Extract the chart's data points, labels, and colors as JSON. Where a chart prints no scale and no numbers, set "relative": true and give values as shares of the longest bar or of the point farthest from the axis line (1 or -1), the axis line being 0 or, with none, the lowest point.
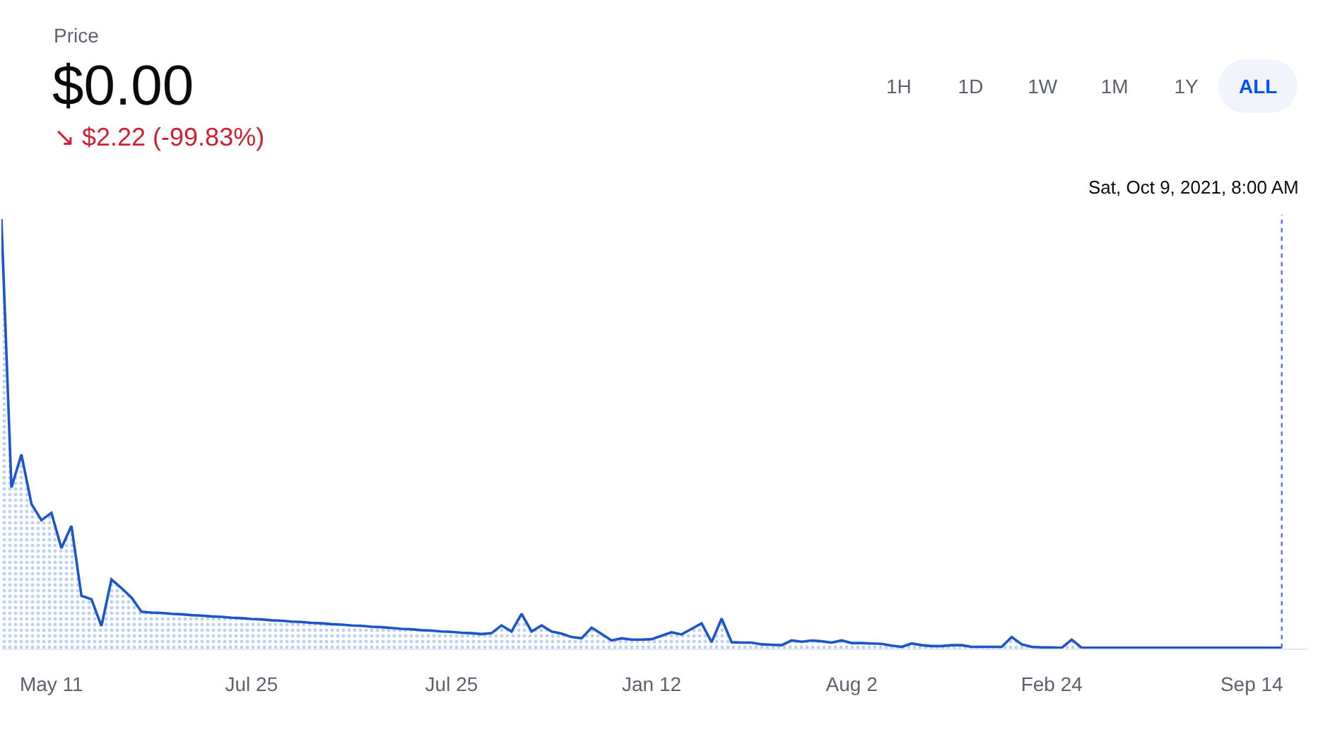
{
  "chart_data": {
    "type": "area",
    "title": "Price",
    "subtitle": "$0.00",
    "annotations": [
      "↘ $2.22 (-99.83%)",
      "1H",
      "1D",
      "1W",
      "1M",
      "1Y",
      "ALL",
      "Sat, Oct 9, 2021, 8:00 AM"
    ],
    "relative": true,
    "grid": false,
    "marker": "none",
    "line_style": "solid",
    "categories": [
      null,
      null,
      null,
      null,
      null,
      "May 11",
      null,
      null,
      null,
      null,
      null,
      null,
      null,
      null,
      null,
      null,
      null,
      null,
      null,
      null,
      null,
      null,
      null,
      null,
      null,
      "Jul 25",
      null,
      null,
      null,
      null,
      null,
      null,
      null,
      null,
      null,
      null,
      null,
      null,
      null,
      null,
      null,
      null,
      null,
      null,
      null,
      "Jul 25",
      null,
      null,
      null,
      null,
      null,
      null,
      null,
      null,
      null,
      null,
      null,
      null,
      null,
      null,
      null,
      null,
      null,
      null,
      null,
      "Jan 12",
      null,
      null,
      null,
      null,
      null,
      null,
      null,
      null,
      null,
      null,
      null,
      null,
      null,
      null,
      null,
      null,
      null,
      null,
      null,
      "Aug 2",
      null,
      null,
      null,
      null,
      null,
      null,
      null,
      null,
      null,
      null,
      null,
      null,
      null,
      null,
      null,
      null,
      null,
      null,
      null,
      "Feb 24",
      null,
      null,
      null,
      null,
      null,
      null,
      null,
      null,
      null,
      null,
      null,
      null,
      null,
      null,
      null,
      null,
      null,
      null,
      null,
      "Sep 14",
      null,
      null,
      null
    ],
    "series": [
      {
        "color": "#1c55c8",
        "values": [
          1.0,
          0.375,
          0.452,
          0.337,
          0.299,
          0.316,
          0.234,
          0.286,
          0.123,
          0.115,
          0.053,
          0.161,
          0.141,
          0.119,
          0.086,
          0.084,
          0.083,
          0.081,
          0.08,
          0.078,
          0.077,
          0.075,
          0.074,
          0.072,
          0.071,
          0.069,
          0.068,
          0.066,
          0.065,
          0.063,
          0.062,
          0.06,
          0.059,
          0.057,
          0.056,
          0.054,
          0.053,
          0.051,
          0.05,
          0.048,
          0.046,
          0.045,
          0.043,
          0.042,
          0.04,
          0.039,
          0.037,
          0.036,
          0.034,
          0.036,
          0.054,
          0.04,
          0.081,
          0.04,
          0.054,
          0.04,
          0.035,
          0.027,
          0.024,
          0.049,
          0.034,
          0.019,
          0.024,
          0.021,
          0.021,
          0.022,
          0.03,
          0.038,
          0.033,
          0.046,
          0.059,
          0.015,
          0.07,
          0.015,
          0.014,
          0.014,
          0.01,
          0.009,
          0.008,
          0.019,
          0.016,
          0.019,
          0.017,
          0.014,
          0.019,
          0.013,
          0.013,
          0.012,
          0.011,
          0.007,
          0.004,
          0.012,
          0.008,
          0.006,
          0.006,
          0.008,
          0.008,
          0.004,
          0.004,
          0.004,
          0.004,
          0.027,
          0.01,
          0.004,
          0.003,
          0.003,
          0.002,
          0.021,
          0.002,
          0.002,
          0.002,
          0.002,
          0.002,
          0.002,
          0.002,
          0.002,
          0.002,
          0.002,
          0.002,
          0.002,
          0.002,
          0.002,
          0.002,
          0.002,
          0.002,
          0.002,
          0.002,
          0.002,
          0.002
        ]
      }
    ]
  }
}
